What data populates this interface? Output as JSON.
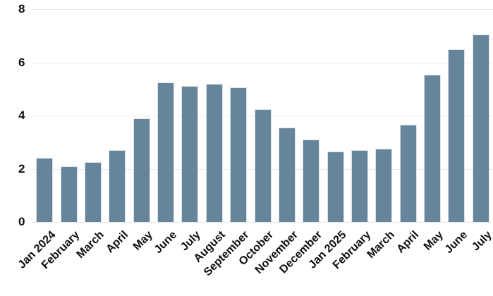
{
  "chart_data": {
    "type": "bar",
    "title": "",
    "xlabel": "",
    "ylabel": "",
    "categories": [
      "Jan 2024",
      "February",
      "March",
      "April",
      "May",
      "June",
      "July",
      "August",
      "September",
      "October",
      "November",
      "December",
      "Jan 2025",
      "February",
      "March",
      "April",
      "May",
      "June",
      "July"
    ],
    "values": [
      2.4,
      2.1,
      2.25,
      2.7,
      3.9,
      5.25,
      5.1,
      5.2,
      5.05,
      4.25,
      3.55,
      3.1,
      2.65,
      2.7,
      2.75,
      3.65,
      5.55,
      6.5,
      7.05
    ],
    "ylim": [
      0,
      8
    ],
    "yticks": [
      0,
      2,
      4,
      6,
      8
    ],
    "grid": true,
    "legend": false,
    "xtick_rotation_deg": 45,
    "colors": {
      "bar_fill": "#66849a",
      "bar_edge": "#d7e1ea",
      "gridline": "#e9eaed",
      "text": "#0f0f0f",
      "background": "#ffffff"
    }
  }
}
